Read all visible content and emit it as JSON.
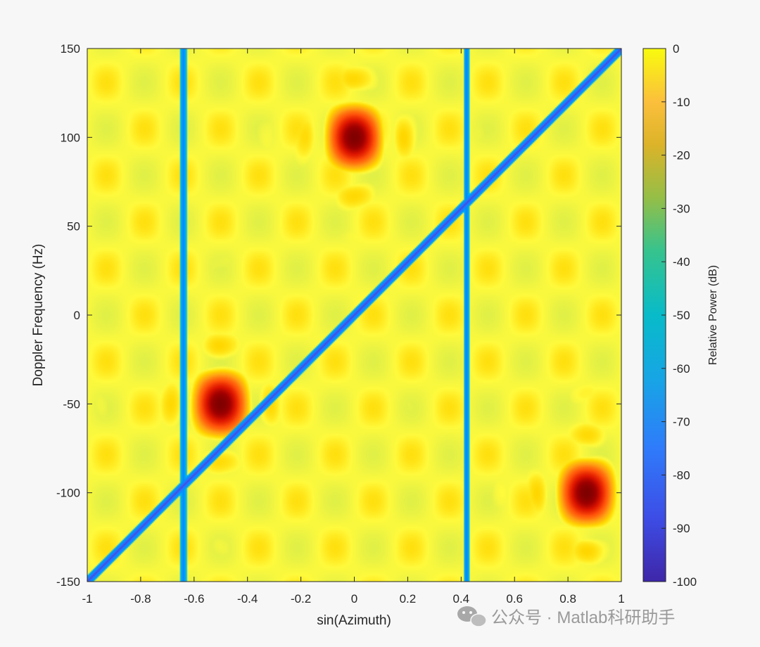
{
  "chart_data": {
    "type": "heatmap",
    "title": "",
    "xlabel": "sin(Azimuth)",
    "ylabel": "Doppler Frequency (Hz)",
    "xlim": [
      -1,
      1
    ],
    "ylim": [
      -150,
      150
    ],
    "x_ticks": [
      -1,
      -0.8,
      -0.6,
      -0.4,
      -0.2,
      0,
      0.2,
      0.4,
      0.6,
      0.8,
      1
    ],
    "x_tick_labels": [
      "-1",
      "-0.8",
      "-0.6",
      "-0.4",
      "-0.2",
      "0",
      "0.2",
      "0.4",
      "0.6",
      "0.8",
      "1"
    ],
    "y_ticks": [
      150,
      100,
      50,
      0,
      -50,
      -100,
      -150
    ],
    "y_tick_labels": [
      "150",
      "100",
      "50",
      "0",
      "-50",
      "-100",
      "-150"
    ],
    "colorbar": {
      "label": "Relative Power (dB)",
      "range": [
        -100,
        0
      ],
      "ticks": [
        0,
        -10,
        -20,
        -30,
        -40,
        -50,
        -60,
        -70,
        -80,
        -90,
        -100
      ],
      "tick_labels": [
        "0",
        "-10",
        "-20",
        "-30",
        "-40",
        "-50",
        "-60",
        "-70",
        "-80",
        "-90",
        "-100"
      ],
      "colormap": "parula-like (jet style)"
    },
    "peaks": [
      {
        "x": 0,
        "y": 100,
        "value_db": 0
      },
      {
        "x": -0.5,
        "y": -50,
        "value_db": 0
      },
      {
        "x": 0.87,
        "y": -100,
        "value_db": 0
      }
    ],
    "clutter_ridge": {
      "x_start": -1,
      "y_start": -150,
      "x_end": 1,
      "y_end": 150,
      "value_db": -70
    },
    "nulls_vertical": [
      -0.64,
      0.42
    ],
    "grid": false,
    "colors": {
      "background": "#f7f7f7",
      "peak": "#800000",
      "high": "#ff3000",
      "mid": "#ffd200",
      "floor": "#ffff40",
      "null": "#00a8ff"
    }
  },
  "watermark": {
    "icon": "wechat-icon",
    "text": "公众号 · Matlab科研助手"
  }
}
